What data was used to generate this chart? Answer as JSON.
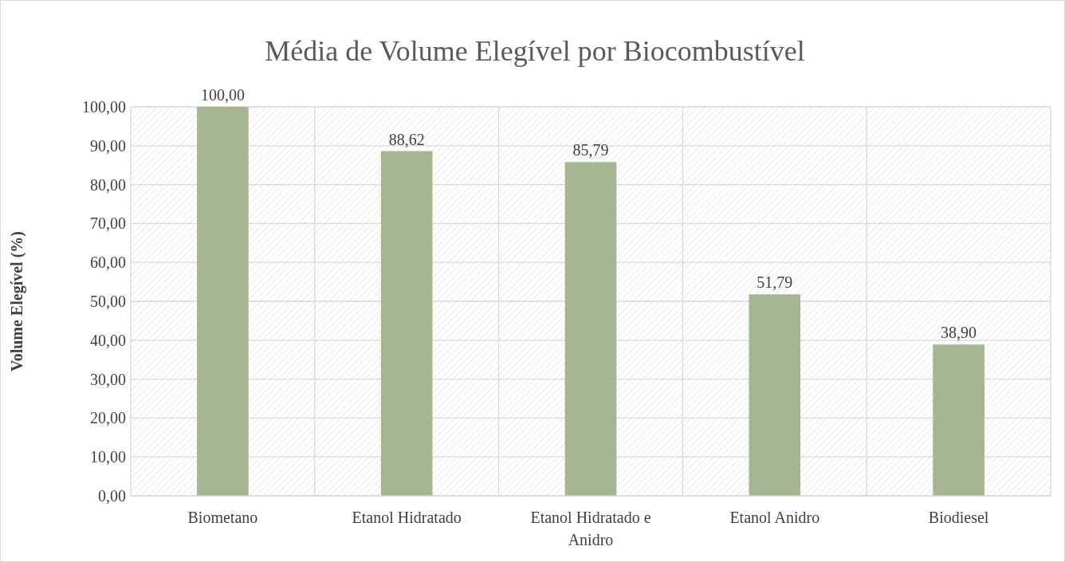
{
  "chart_data": {
    "type": "bar",
    "title": "Média de Volume Elegível por Biocombustível",
    "ylabel": "Volume Elegível (%)",
    "categories": [
      "Biometano",
      "Etanol Hidratado",
      "Etanol Hidratado e Anidro",
      "Etanol Anidro",
      "Biodiesel"
    ],
    "values": [
      100,
      88.62,
      85.79,
      51.79,
      38.9
    ],
    "value_labels": [
      "100,00",
      "88,62",
      "85,79",
      "51,79",
      "38,90"
    ],
    "color": "#a6b592",
    "ylim": [
      0,
      100
    ],
    "yticks": [
      {
        "value": 0,
        "label": "0,00"
      },
      {
        "value": 10,
        "label": "10,00"
      },
      {
        "value": 20,
        "label": "20,00"
      },
      {
        "value": 30,
        "label": "30,00"
      },
      {
        "value": 40,
        "label": "40,00"
      },
      {
        "value": 50,
        "label": "50,00"
      },
      {
        "value": 60,
        "label": "60,00"
      },
      {
        "value": 70,
        "label": "70,00"
      },
      {
        "value": 80,
        "label": "80,00"
      },
      {
        "value": 90,
        "label": "90,00"
      },
      {
        "value": 100,
        "label": "100,00"
      }
    ],
    "grid": true
  }
}
